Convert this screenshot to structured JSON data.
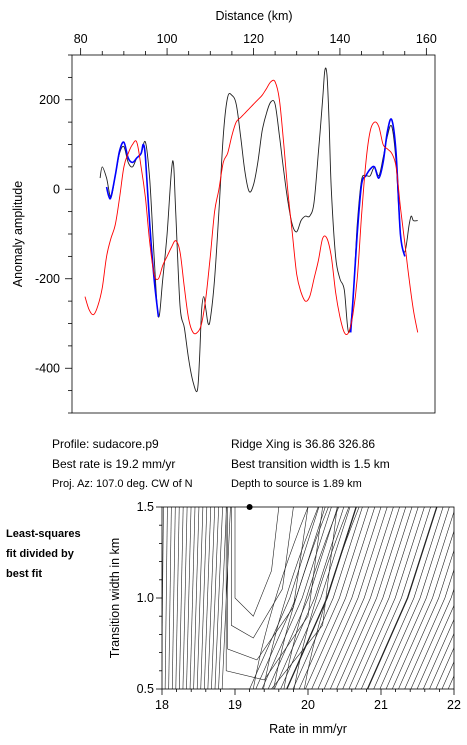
{
  "chart_data": [
    {
      "type": "line",
      "title": "",
      "xlabel": "Distance (km)",
      "ylabel": "Anomaly amplitude",
      "x_ticks": [
        80,
        100,
        120,
        140,
        160
      ],
      "y_ticks": [
        200,
        0,
        -200,
        -400
      ],
      "xlim": [
        78,
        162
      ],
      "ylim": [
        -500,
        300
      ],
      "grid": false,
      "series": [
        {
          "color": "#202020",
          "points": [
            [
              84.5,
              25
            ],
            [
              85,
              50
            ],
            [
              86,
              25
            ],
            [
              87,
              -18
            ],
            [
              88,
              30
            ],
            [
              89,
              80
            ],
            [
              90,
              95
            ],
            [
              91,
              60
            ],
            [
              92,
              50
            ],
            [
              93,
              70
            ],
            [
              94,
              80
            ],
            [
              95,
              105
            ],
            [
              96,
              20
            ],
            [
              97,
              -150
            ],
            [
              98,
              -285
            ],
            [
              99,
              -200
            ],
            [
              100,
              -100
            ],
            [
              101,
              40
            ],
            [
              101.5,
              55
            ],
            [
              102,
              -50
            ],
            [
              103,
              -260
            ],
            [
              104,
              -310
            ],
            [
              105,
              -380
            ],
            [
              106,
              -430
            ],
            [
              107,
              -450
            ],
            [
              107.5,
              -380
            ],
            [
              108,
              -270
            ],
            [
              108.5,
              -240
            ],
            [
              109,
              -270
            ],
            [
              109.5,
              -300
            ],
            [
              110,
              -290
            ],
            [
              111,
              -200
            ],
            [
              112,
              -50
            ],
            [
              113,
              120
            ],
            [
              114,
              205
            ],
            [
              115,
              210
            ],
            [
              116,
              190
            ],
            [
              117,
              120
            ],
            [
              118,
              40
            ],
            [
              119,
              -5
            ],
            [
              120,
              10
            ],
            [
              121,
              60
            ],
            [
              122,
              130
            ],
            [
              123,
              170
            ],
            [
              124,
              195
            ],
            [
              125,
              190
            ],
            [
              126,
              120
            ],
            [
              127,
              40
            ],
            [
              128,
              -30
            ],
            [
              129,
              -80
            ],
            [
              130,
              -95
            ],
            [
              131,
              -70
            ],
            [
              132,
              -60
            ],
            [
              133,
              -60
            ],
            [
              134,
              -30
            ],
            [
              135,
              80
            ],
            [
              136,
              200
            ],
            [
              136.5,
              265
            ],
            [
              137,
              255
            ],
            [
              137.5,
              150
            ],
            [
              138,
              0
            ],
            [
              139,
              -150
            ],
            [
              140,
              -200
            ],
            [
              141,
              -225
            ],
            [
              142,
              -320
            ],
            [
              143,
              -250
            ],
            [
              144,
              -80
            ],
            [
              145,
              20
            ],
            [
              146,
              30
            ],
            [
              147,
              30
            ],
            [
              148,
              50
            ],
            [
              149,
              30
            ],
            [
              150,
              70
            ],
            [
              151,
              120
            ],
            [
              152,
              140
            ],
            [
              153,
              60
            ],
            [
              154,
              -100
            ],
            [
              155,
              -140
            ],
            [
              156,
              -80
            ],
            [
              156.5,
              -60
            ],
            [
              157,
              -70
            ],
            [
              158,
              -70
            ]
          ]
        },
        {
          "color": "#0000ff",
          "segments": [
            [
              [
                86,
                5
              ],
              [
                86.5,
                -15
              ],
              [
                87,
                -18
              ],
              [
                88,
                30
              ],
              [
                89,
                85
              ],
              [
                90,
                105
              ],
              [
                91,
                70
              ],
              [
                92,
                60
              ],
              [
                93,
                70
              ],
              [
                94,
                80
              ],
              [
                94.5,
                100
              ],
              [
                95,
                70
              ],
              [
                96,
                -80
              ],
              [
                97,
                -200
              ],
              [
                98,
                -285
              ]
            ],
            [
              [
                142.5,
                -320
              ],
              [
                143,
                -250
              ],
              [
                144,
                -100
              ],
              [
                145,
                10
              ],
              [
                146,
                30
              ],
              [
                147,
                45
              ],
              [
                148,
                50
              ],
              [
                149,
                25
              ],
              [
                150,
                60
              ],
              [
                151,
                130
              ],
              [
                152,
                155
              ],
              [
                153,
                80
              ],
              [
                154,
                -100
              ],
              [
                155,
                -150
              ]
            ]
          ]
        },
        {
          "color": "#ff0000",
          "points": [
            [
              81,
              -240
            ],
            [
              82,
              -270
            ],
            [
              83,
              -280
            ],
            [
              84,
              -260
            ],
            [
              85,
              -220
            ],
            [
              86,
              -150
            ],
            [
              87,
              -110
            ],
            [
              88,
              -80
            ],
            [
              89,
              -20
            ],
            [
              90,
              50
            ],
            [
              91,
              80
            ],
            [
              92,
              100
            ],
            [
              93,
              105
            ],
            [
              94,
              50
            ],
            [
              95,
              -20
            ],
            [
              96,
              -120
            ],
            [
              97,
              -190
            ],
            [
              98,
              -200
            ],
            [
              99,
              -170
            ],
            [
              100,
              -150
            ],
            [
              101,
              -130
            ],
            [
              102,
              -115
            ],
            [
              103,
              -140
            ],
            [
              104,
              -220
            ],
            [
              105,
              -290
            ],
            [
              106,
              -320
            ],
            [
              107,
              -320
            ],
            [
              108,
              -300
            ],
            [
              109,
              -240
            ],
            [
              110,
              -150
            ],
            [
              111,
              -50
            ],
            [
              112,
              0
            ],
            [
              113,
              60
            ],
            [
              114,
              80
            ],
            [
              115,
              120
            ],
            [
              116,
              150
            ],
            [
              117,
              160
            ],
            [
              118,
              170
            ],
            [
              119,
              180
            ],
            [
              120,
              190
            ],
            [
              121,
              200
            ],
            [
              122,
              210
            ],
            [
              123,
              225
            ],
            [
              124,
              240
            ],
            [
              125,
              240
            ],
            [
              126,
              200
            ],
            [
              127,
              100
            ],
            [
              128,
              -10
            ],
            [
              129,
              -100
            ],
            [
              130,
              -190
            ],
            [
              131,
              -230
            ],
            [
              132,
              -250
            ],
            [
              133,
              -240
            ],
            [
              134,
              -200
            ],
            [
              135,
              -160
            ],
            [
              136,
              -110
            ],
            [
              137,
              -110
            ],
            [
              138,
              -150
            ],
            [
              139,
              -230
            ],
            [
              140,
              -285
            ],
            [
              141,
              -320
            ],
            [
              142,
              -320
            ],
            [
              143,
              -280
            ],
            [
              144,
              -200
            ],
            [
              145,
              -60
            ],
            [
              146,
              60
            ],
            [
              147,
              130
            ],
            [
              148,
              150
            ],
            [
              149,
              140
            ],
            [
              150,
              100
            ],
            [
              151,
              90
            ],
            [
              152,
              80
            ],
            [
              153,
              50
            ],
            [
              154,
              -40
            ],
            [
              155,
              -120
            ],
            [
              156,
              -200
            ],
            [
              157,
              -270
            ],
            [
              158,
              -320
            ]
          ]
        }
      ]
    },
    {
      "type": "contour",
      "title": "",
      "xlabel": "Rate in mm/yr",
      "ylabel": "Transition width in km",
      "x_ticks": [
        18,
        19,
        20,
        21,
        22
      ],
      "y_ticks": [
        1.5,
        1.0,
        0.5
      ],
      "xlim": [
        18,
        22
      ],
      "ylim": [
        0.5,
        1.5
      ],
      "best_fit_point": [
        19.2,
        1.5
      ]
    }
  ],
  "info": {
    "profile": "Profile: sudacore.p9",
    "ridge_xing": "Ridge Xing is 36.86 326.86",
    "best_rate": "Best rate is 19.2 mm/yr",
    "best_transition": "Best transition width is 1.5 km",
    "proj_az": "Proj. Az: 107.0 deg. CW of N",
    "depth": "Depth to source is    1.89 km"
  },
  "side_label": [
    "Least-squares",
    "fit divided by",
    "best fit"
  ]
}
